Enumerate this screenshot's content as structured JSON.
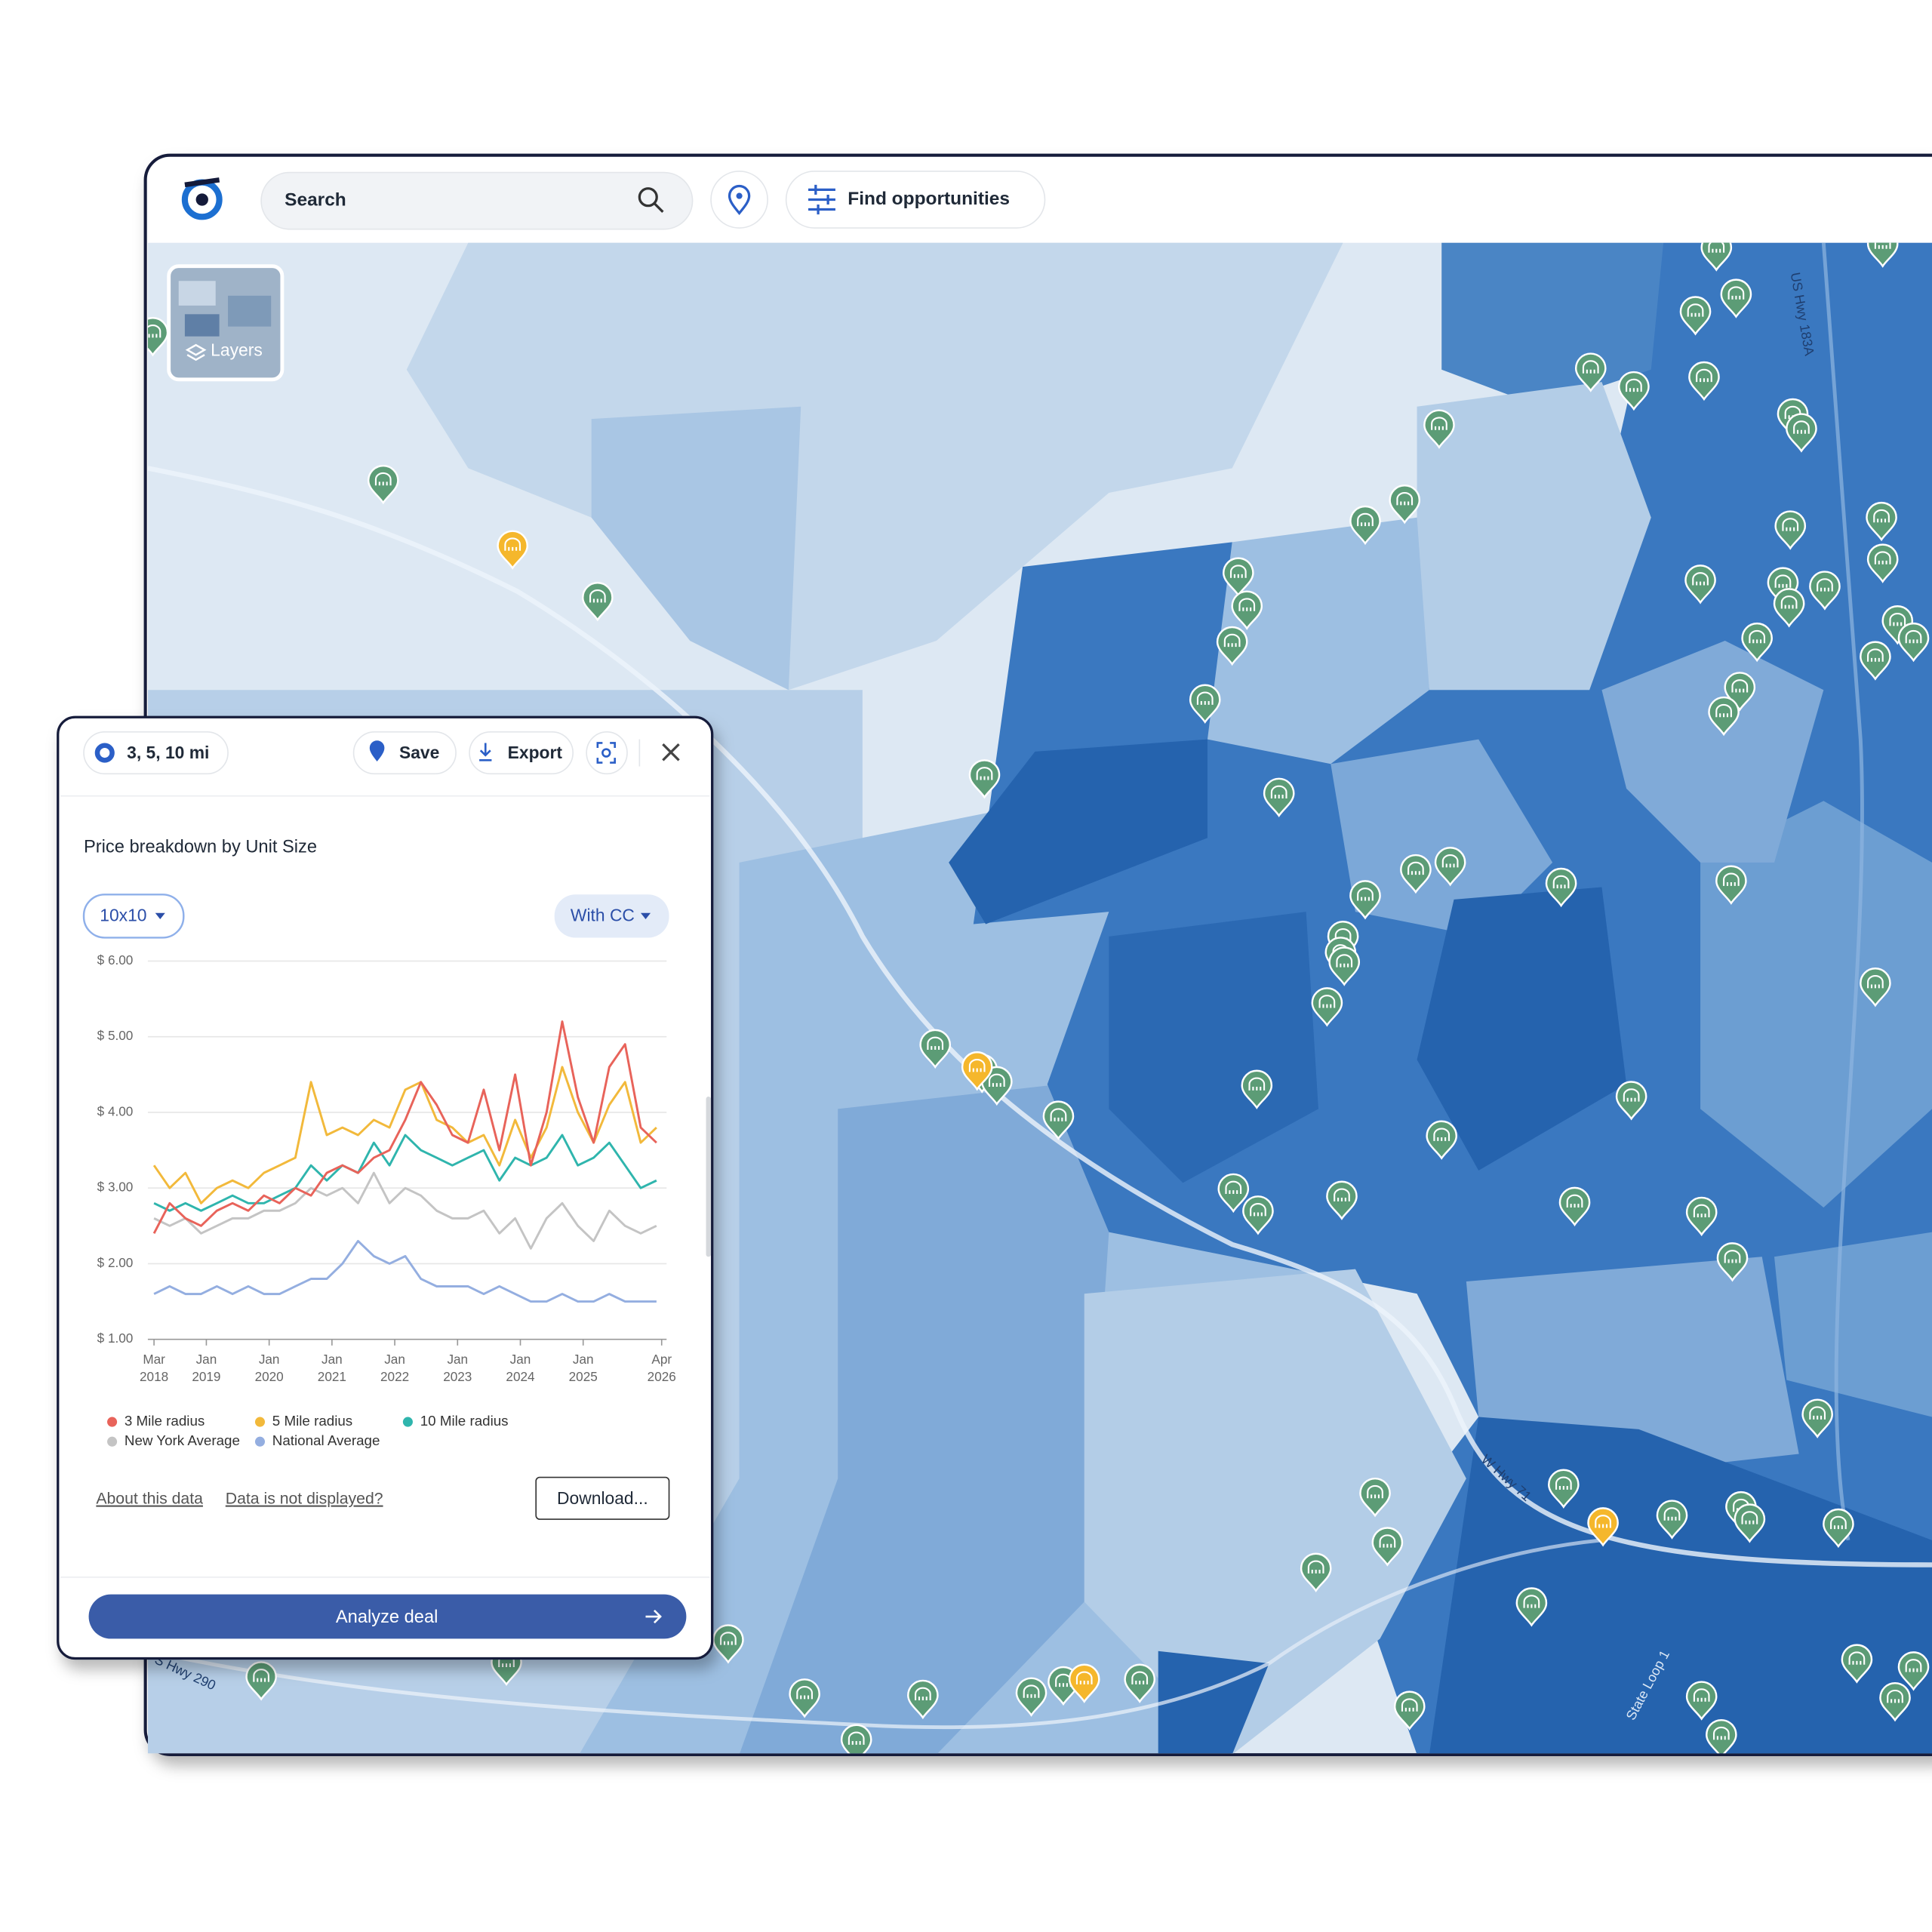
{
  "toolbar": {
    "search_placeholder": "Search",
    "find_button": "Find opportunities"
  },
  "map": {
    "layers_button": "Layers",
    "road_labels": [
      "US Hwy 183A",
      "W Hwy 71",
      "State Loop 1",
      "S Hwy 290"
    ]
  },
  "panel": {
    "radius_chip": "3, 5, 10 mi",
    "save": "Save",
    "export": "Export",
    "unit_size": "10x10",
    "climate": "With CC",
    "links": [
      "About this data",
      "Data is not displayed?"
    ],
    "download": "Download...",
    "analyze": "Analyze deal"
  },
  "chart_data": {
    "type": "line",
    "title": "Price breakdown by Unit Size",
    "x": [
      "2018-03",
      "2018-06",
      "2018-09",
      "2018-12",
      "2019-03",
      "2019-06",
      "2019-09",
      "2019-12",
      "2020-03",
      "2020-06",
      "2020-09",
      "2020-12",
      "2021-03",
      "2021-06",
      "2021-09",
      "2021-12",
      "2022-03",
      "2022-06",
      "2022-09",
      "2022-12",
      "2023-03",
      "2023-06",
      "2023-09",
      "2023-12",
      "2024-03",
      "2024-06",
      "2024-09",
      "2024-12",
      "2025-03",
      "2025-06",
      "2025-09",
      "2025-12",
      "2026-03"
    ],
    "series": [
      {
        "name": "3 Mile radius",
        "color": "#e8635a",
        "values": [
          2.4,
          2.8,
          2.6,
          2.5,
          2.7,
          2.8,
          2.7,
          2.9,
          2.8,
          3.0,
          2.9,
          3.2,
          3.3,
          3.2,
          3.4,
          3.5,
          3.9,
          4.4,
          4.1,
          3.7,
          3.6,
          4.3,
          3.5,
          4.5,
          3.3,
          4.0,
          5.2,
          4.2,
          3.6,
          4.6,
          4.9,
          3.8,
          3.6
        ]
      },
      {
        "name": "5 Mile radius",
        "color": "#f2b93b",
        "values": [
          3.3,
          3.0,
          3.2,
          2.8,
          3.0,
          3.1,
          3.0,
          3.2,
          3.3,
          3.4,
          4.4,
          3.7,
          3.8,
          3.7,
          3.9,
          3.8,
          4.3,
          4.4,
          3.9,
          3.8,
          3.6,
          3.7,
          3.3,
          3.9,
          3.4,
          3.8,
          4.6,
          4.0,
          3.6,
          4.1,
          4.4,
          3.6,
          3.8
        ]
      },
      {
        "name": "10 Mile radius",
        "color": "#2fb5ad",
        "values": [
          2.8,
          2.7,
          2.8,
          2.7,
          2.8,
          2.9,
          2.8,
          2.8,
          2.9,
          3.0,
          3.3,
          3.1,
          3.3,
          3.2,
          3.6,
          3.3,
          3.7,
          3.5,
          3.4,
          3.3,
          3.4,
          3.5,
          3.1,
          3.4,
          3.3,
          3.4,
          3.7,
          3.3,
          3.4,
          3.6,
          3.3,
          3.0,
          3.1
        ]
      },
      {
        "name": "New York Average",
        "color": "#c4c4c4",
        "values": [
          2.6,
          2.5,
          2.6,
          2.4,
          2.5,
          2.6,
          2.6,
          2.7,
          2.7,
          2.8,
          3.0,
          2.9,
          3.0,
          2.8,
          3.2,
          2.8,
          3.0,
          2.9,
          2.7,
          2.6,
          2.6,
          2.7,
          2.4,
          2.6,
          2.2,
          2.6,
          2.8,
          2.5,
          2.3,
          2.7,
          2.5,
          2.4,
          2.5
        ]
      },
      {
        "name": "National Average",
        "color": "#94aee0",
        "values": [
          1.6,
          1.7,
          1.6,
          1.6,
          1.7,
          1.6,
          1.7,
          1.6,
          1.6,
          1.7,
          1.8,
          1.8,
          2.0,
          2.3,
          2.1,
          2.0,
          2.1,
          1.8,
          1.7,
          1.7,
          1.7,
          1.6,
          1.7,
          1.6,
          1.5,
          1.5,
          1.6,
          1.5,
          1.5,
          1.6,
          1.5,
          1.5,
          1.5
        ]
      }
    ],
    "xlim": [
      "2018-03",
      "2026-04"
    ],
    "xticks": [
      {
        "value": "2018-03",
        "label": [
          "Mar",
          "2018"
        ]
      },
      {
        "value": "2019-01",
        "label": [
          "Jan",
          "2019"
        ]
      },
      {
        "value": "2020-01",
        "label": [
          "Jan",
          "2020"
        ]
      },
      {
        "value": "2021-01",
        "label": [
          "Jan",
          "2021"
        ]
      },
      {
        "value": "2022-01",
        "label": [
          "Jan",
          "2022"
        ]
      },
      {
        "value": "2023-01",
        "label": [
          "Jan",
          "2023"
        ]
      },
      {
        "value": "2024-01",
        "label": [
          "Jan",
          "2024"
        ]
      },
      {
        "value": "2025-01",
        "label": [
          "Jan",
          "2025"
        ]
      },
      {
        "value": "2026-04",
        "label": [
          "Apr",
          "2026"
        ]
      }
    ],
    "ylim": [
      1,
      6
    ],
    "yticks": [
      {
        "value": 1,
        "label": "$ 1.00"
      },
      {
        "value": 2,
        "label": "$ 2.00"
      },
      {
        "value": 3,
        "label": "$ 3.00"
      },
      {
        "value": 4,
        "label": "$ 4.00"
      },
      {
        "value": 5,
        "label": "$ 5.00"
      },
      {
        "value": 6,
        "label": "$ 6.00"
      }
    ],
    "grid": true
  }
}
